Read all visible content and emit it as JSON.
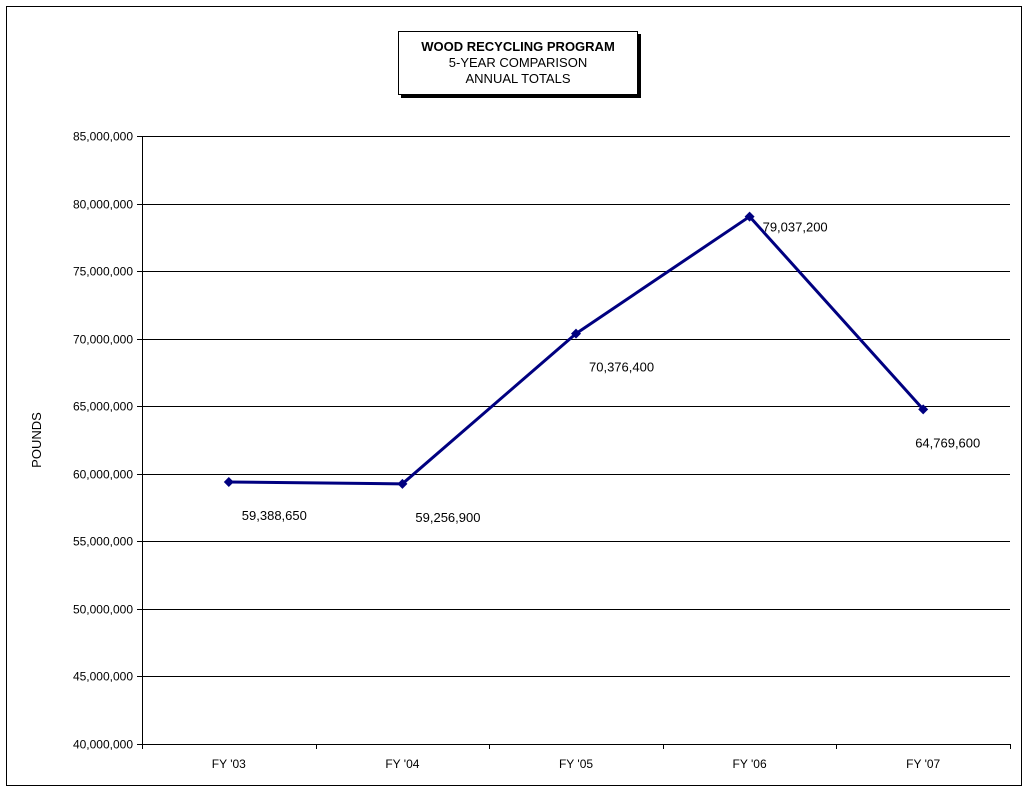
{
  "chart_data": {
    "type": "line",
    "title": "WOOD RECYCLING PROGRAM",
    "subtitle_lines": [
      "5-YEAR COMPARISON",
      "ANNUAL TOTALS"
    ],
    "ylabel": "POUNDS",
    "xlabel": "",
    "categories": [
      "FY '03",
      "FY '04",
      "FY '05",
      "FY '06",
      "FY '07"
    ],
    "series": [
      {
        "values": [
          59388650,
          59256900,
          70376400,
          79037200,
          64769600
        ],
        "labels": [
          "59,388,650",
          "59,256,900",
          "70,376,400",
          "79,037,200",
          "64,769,600"
        ],
        "color": "#000080"
      }
    ],
    "ylim": [
      40000000,
      85000000
    ],
    "ytick_step": 5000000,
    "ytick_labels": [
      "40,000,000",
      "45,000,000",
      "50,000,000",
      "55,000,000",
      "60,000,000",
      "65,000,000",
      "70,000,000",
      "75,000,000",
      "80,000,000",
      "85,000,000"
    ],
    "grid": true,
    "legend": "none"
  }
}
